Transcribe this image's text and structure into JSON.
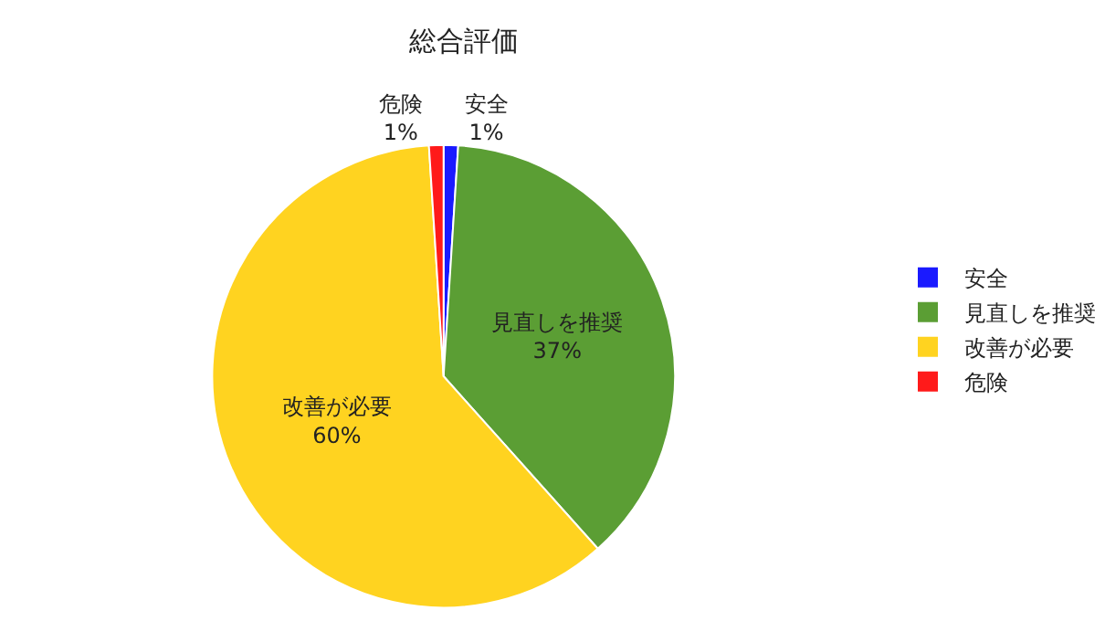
{
  "chart_data": {
    "type": "pie",
    "title": "総合評価",
    "categories": [
      "安全",
      "見直しを推奨",
      "改善が必要",
      "危険"
    ],
    "values": [
      1,
      37,
      60,
      1
    ],
    "value_labels": [
      "1%",
      "37%",
      "60%",
      "1%"
    ],
    "colors": [
      "#1a1aff",
      "#5b9e34",
      "#ffd320",
      "#ff1a1a"
    ],
    "legend": "right"
  }
}
